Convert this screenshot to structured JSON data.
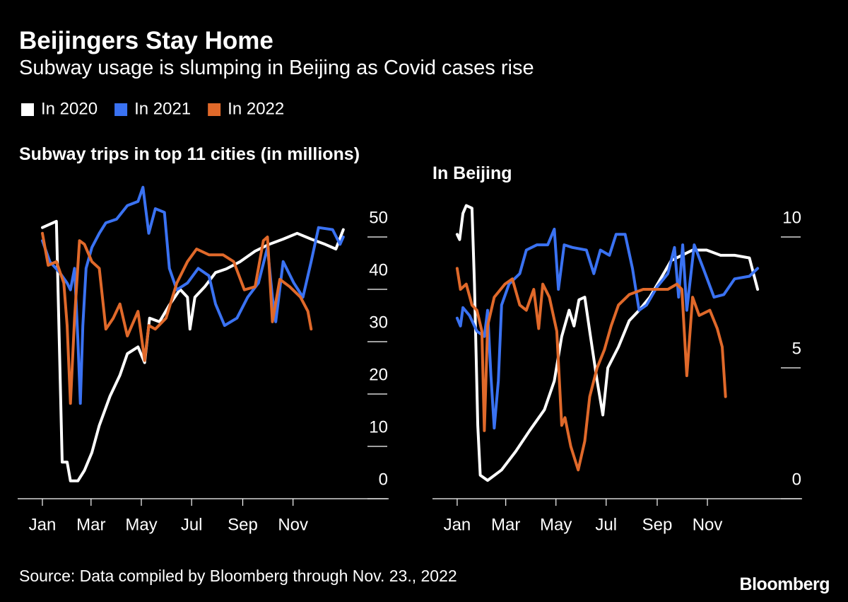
{
  "title": "Beijingers Stay Home",
  "subtitle": "Subway usage is slumping in Beijing as Covid cases rise",
  "source": "Source: Data compiled by Bloomberg through Nov. 23., 2022",
  "brand": "Bloomberg",
  "chart_data": [
    {
      "type": "line",
      "title": "Subway trips in top 11 cities (in millions)",
      "xlim": [
        -29,
        421
      ],
      "ylim": [
        0,
        60
      ],
      "yticks": [
        0,
        10,
        20,
        30,
        40,
        50
      ],
      "xticks": [
        {
          "value": 1,
          "label": "Jan"
        },
        {
          "value": 60,
          "label": "Mar"
        },
        {
          "value": 121,
          "label": "May"
        },
        {
          "value": 182,
          "label": "Jul"
        },
        {
          "value": 244,
          "label": "Sep"
        },
        {
          "value": 305,
          "label": "Nov"
        }
      ],
      "series": [
        {
          "name": "In 2020",
          "color": "#ffffff",
          "x": [
            1,
            18,
            25,
            31,
            35,
            44,
            52,
            61,
            70,
            83,
            95,
            104,
            117,
            125,
            131,
            143,
            155,
            168,
            177,
            180,
            186,
            198,
            211,
            224,
            241,
            259,
            276,
            293,
            310,
            327,
            344,
            357,
            366
          ],
          "values": [
            51.8,
            53,
            7,
            7,
            3.4,
            3.4,
            5.4,
            8.8,
            14,
            19.6,
            23.6,
            27.7,
            29,
            26,
            34.5,
            33.8,
            37,
            40,
            38.5,
            32.4,
            38.5,
            40.5,
            43.2,
            43.9,
            45.3,
            47.3,
            48.6,
            49.6,
            50.7,
            49.6,
            48.6,
            47.7,
            51.4
          ]
        },
        {
          "name": "In 2021",
          "color": "#3a72f2",
          "x": [
            1,
            10,
            22,
            31,
            35,
            40,
            44,
            47,
            50,
            54,
            61,
            70,
            78,
            91,
            104,
            117,
            123,
            130,
            138,
            149,
            155,
            164,
            177,
            190,
            203,
            211,
            222,
            237,
            250,
            263,
            274,
            280,
            284,
            293,
            306,
            317,
            327,
            336,
            353,
            362,
            366
          ],
          "values": [
            49.3,
            45.3,
            43.2,
            41.2,
            39.9,
            44,
            30.4,
            18.2,
            33,
            44,
            48,
            50.7,
            52.7,
            53.4,
            56,
            56.8,
            59.5,
            50.7,
            55.4,
            54.7,
            44,
            39.9,
            41.2,
            44,
            42.6,
            37.2,
            33.1,
            34.5,
            38.5,
            41.2,
            48,
            38.5,
            33.8,
            45.3,
            41.2,
            38.5,
            45.3,
            51.8,
            51.4,
            48.6,
            50
          ]
        },
        {
          "name": "In 2022",
          "color": "#e0692a",
          "x": [
            1,
            8,
            18,
            27,
            31,
            35,
            40,
            46,
            52,
            61,
            70,
            78,
            87,
            95,
            104,
            117,
            125,
            130,
            138,
            151,
            164,
            177,
            188,
            203,
            220,
            233,
            246,
            259,
            269,
            274,
            280,
            289,
            301,
            314,
            323,
            327
          ],
          "values": [
            50.7,
            44.6,
            45.3,
            41.2,
            33.1,
            18.2,
            34.5,
            49.3,
            48.6,
            45.3,
            44,
            32.4,
            34.5,
            37.2,
            31.1,
            35.8,
            26.4,
            33.1,
            32.4,
            34.5,
            41.2,
            45.3,
            47.7,
            46.6,
            46.6,
            45.3,
            39.9,
            40.5,
            49.3,
            50,
            33.8,
            41.9,
            40.5,
            38.5,
            35.8,
            32.4
          ]
        }
      ]
    },
    {
      "type": "line",
      "title": "In Beijing",
      "xlim": [
        -29,
        420
      ],
      "ylim": [
        0,
        12
      ],
      "yticks": [
        0,
        5,
        10
      ],
      "xticks": [
        {
          "value": 1,
          "label": "Jan"
        },
        {
          "value": 60,
          "label": "Mar"
        },
        {
          "value": 121,
          "label": "May"
        },
        {
          "value": 182,
          "label": "Jul"
        },
        {
          "value": 244,
          "label": "Sep"
        },
        {
          "value": 305,
          "label": "Nov"
        }
      ],
      "series": [
        {
          "name": "In 2020",
          "color": "#ffffff",
          "x": [
            1,
            4,
            8,
            12,
            19,
            22,
            26,
            29,
            38,
            55,
            72,
            89,
            107,
            119,
            128,
            137,
            143,
            149,
            156,
            162,
            171,
            178,
            184,
            197,
            210,
            222,
            235,
            248,
            261,
            274,
            287,
            304,
            321,
            338,
            356,
            366
          ],
          "values": [
            10.1,
            9.9,
            10.9,
            11.2,
            11.1,
            8.2,
            2.8,
            0.9,
            0.7,
            1.1,
            1.8,
            2.6,
            3.4,
            4.5,
            6.2,
            7.2,
            6.6,
            7.6,
            7.7,
            6.4,
            4.5,
            3.2,
            5,
            5.8,
            6.8,
            7.2,
            7.7,
            8.4,
            9.1,
            9.3,
            9.5,
            9.5,
            9.3,
            9.3,
            9.2,
            8
          ]
        },
        {
          "name": "In 2021",
          "color": "#3a72f2",
          "x": [
            1,
            5,
            8,
            16,
            25,
            34,
            38,
            42,
            46,
            51,
            55,
            64,
            77,
            85,
            98,
            111,
            119,
            124,
            131,
            141,
            158,
            167,
            175,
            186,
            194,
            205,
            214,
            222,
            231,
            244,
            257,
            265,
            270,
            275,
            280,
            289,
            300,
            313,
            325,
            338,
            356,
            366
          ],
          "values": [
            6.9,
            6.6,
            7.3,
            7,
            6.4,
            6.2,
            7.2,
            4.7,
            2.7,
            4.5,
            7.4,
            8.2,
            8.6,
            9.5,
            9.7,
            9.7,
            10.3,
            8,
            9.7,
            9.6,
            9.5,
            8.6,
            9.5,
            9.3,
            10.1,
            10.1,
            8.8,
            7.2,
            7.4,
            8.1,
            8.6,
            9.6,
            7.7,
            9.7,
            7.2,
            9.7,
            8.8,
            7.7,
            7.8,
            8.4,
            8.5,
            8.8
          ]
        },
        {
          "name": "In 2022",
          "color": "#e0692a",
          "x": [
            1,
            5,
            12,
            19,
            25,
            31,
            34,
            38,
            46,
            59,
            68,
            77,
            85,
            94,
            100,
            105,
            113,
            122,
            128,
            132,
            139,
            148,
            156,
            162,
            171,
            180,
            188,
            197,
            210,
            227,
            244,
            257,
            268,
            274,
            280,
            287,
            295,
            308,
            317,
            323,
            327
          ],
          "values": [
            8.8,
            8,
            8.2,
            7.4,
            7.2,
            6.4,
            2.6,
            6.6,
            7.7,
            8.2,
            8.4,
            7.4,
            7.2,
            8,
            6.5,
            8.2,
            7.7,
            6.4,
            2.8,
            3.1,
            2,
            1.1,
            2.2,
            3.9,
            5,
            5.7,
            6.6,
            7.4,
            7.8,
            8,
            8,
            8,
            8.2,
            8,
            4.7,
            7.7,
            7,
            7.2,
            6.5,
            5.8,
            3.9
          ]
        }
      ]
    }
  ]
}
